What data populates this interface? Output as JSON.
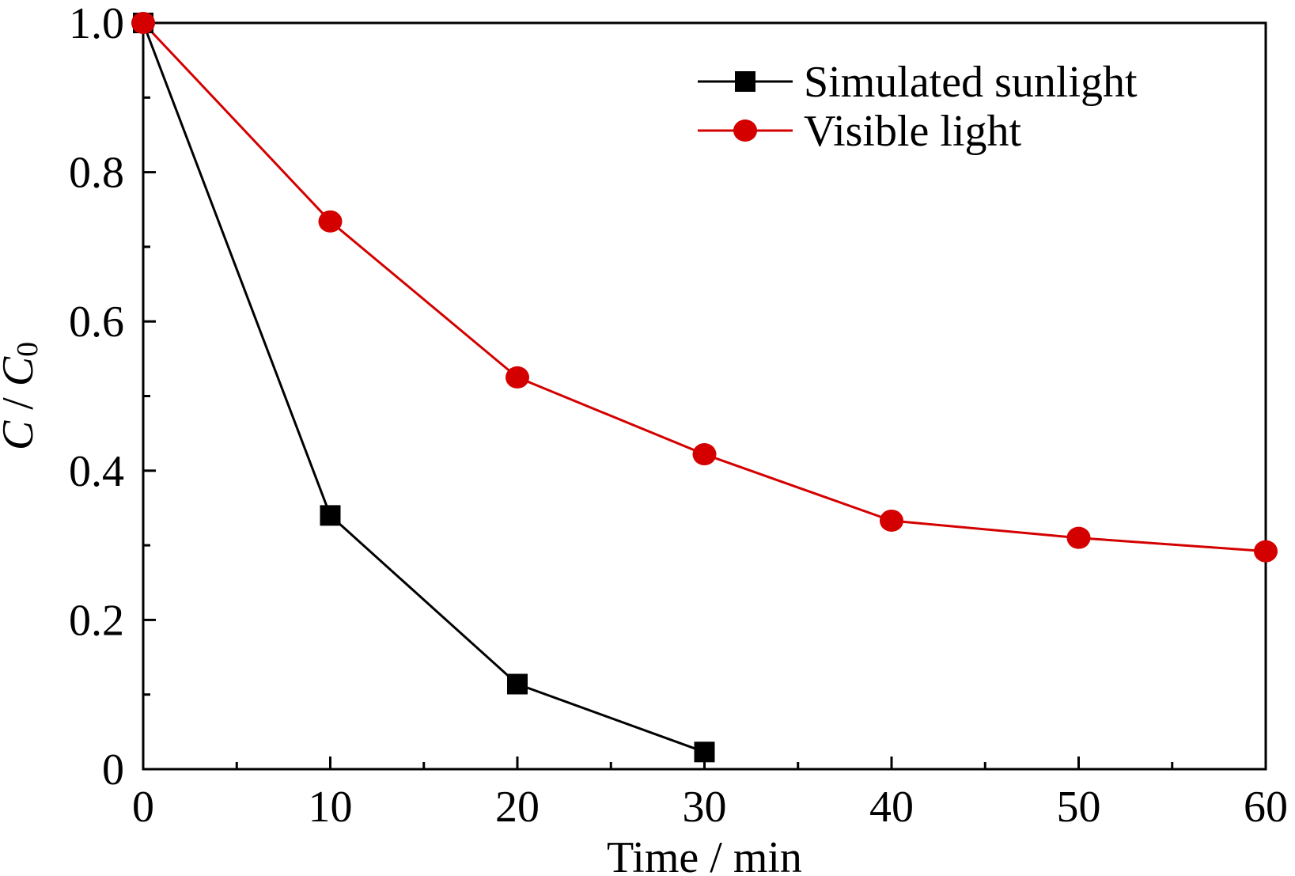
{
  "chart_data": {
    "type": "line",
    "xlabel": "Time / min",
    "ylabel_main": "C",
    "ylabel_sep": " / ",
    "ylabel_base": "C",
    "ylabel_sub": "0",
    "xlim": [
      0,
      60
    ],
    "ylim": [
      0,
      1.0
    ],
    "xticks": [
      0,
      10,
      20,
      30,
      40,
      50,
      60
    ],
    "xtick_labels": [
      "0",
      "10",
      "20",
      "30",
      "40",
      "50",
      "60"
    ],
    "x_minor_ticks": [
      5,
      15,
      25,
      35,
      45,
      55
    ],
    "yticks": [
      0,
      0.2,
      0.4,
      0.6,
      0.8,
      1.0
    ],
    "ytick_labels": [
      "0",
      "0.2",
      "0.4",
      "0.6",
      "0.8",
      "1.0"
    ],
    "y_minor_ticks": [
      0.1,
      0.3,
      0.5,
      0.7,
      0.9
    ],
    "grid": false,
    "legend_position": "top-right",
    "series": [
      {
        "name": "Simulated sunlight",
        "color": "#000000",
        "marker": "square",
        "x": [
          0,
          10,
          20,
          30
        ],
        "y": [
          1.0,
          0.34,
          0.114,
          0.023
        ]
      },
      {
        "name": "Visible light",
        "color": "#d40000",
        "marker": "circle",
        "x": [
          0,
          10,
          20,
          30,
          40,
          50,
          60
        ],
        "y": [
          1.0,
          0.734,
          0.525,
          0.422,
          0.333,
          0.31,
          0.292
        ]
      }
    ]
  }
}
